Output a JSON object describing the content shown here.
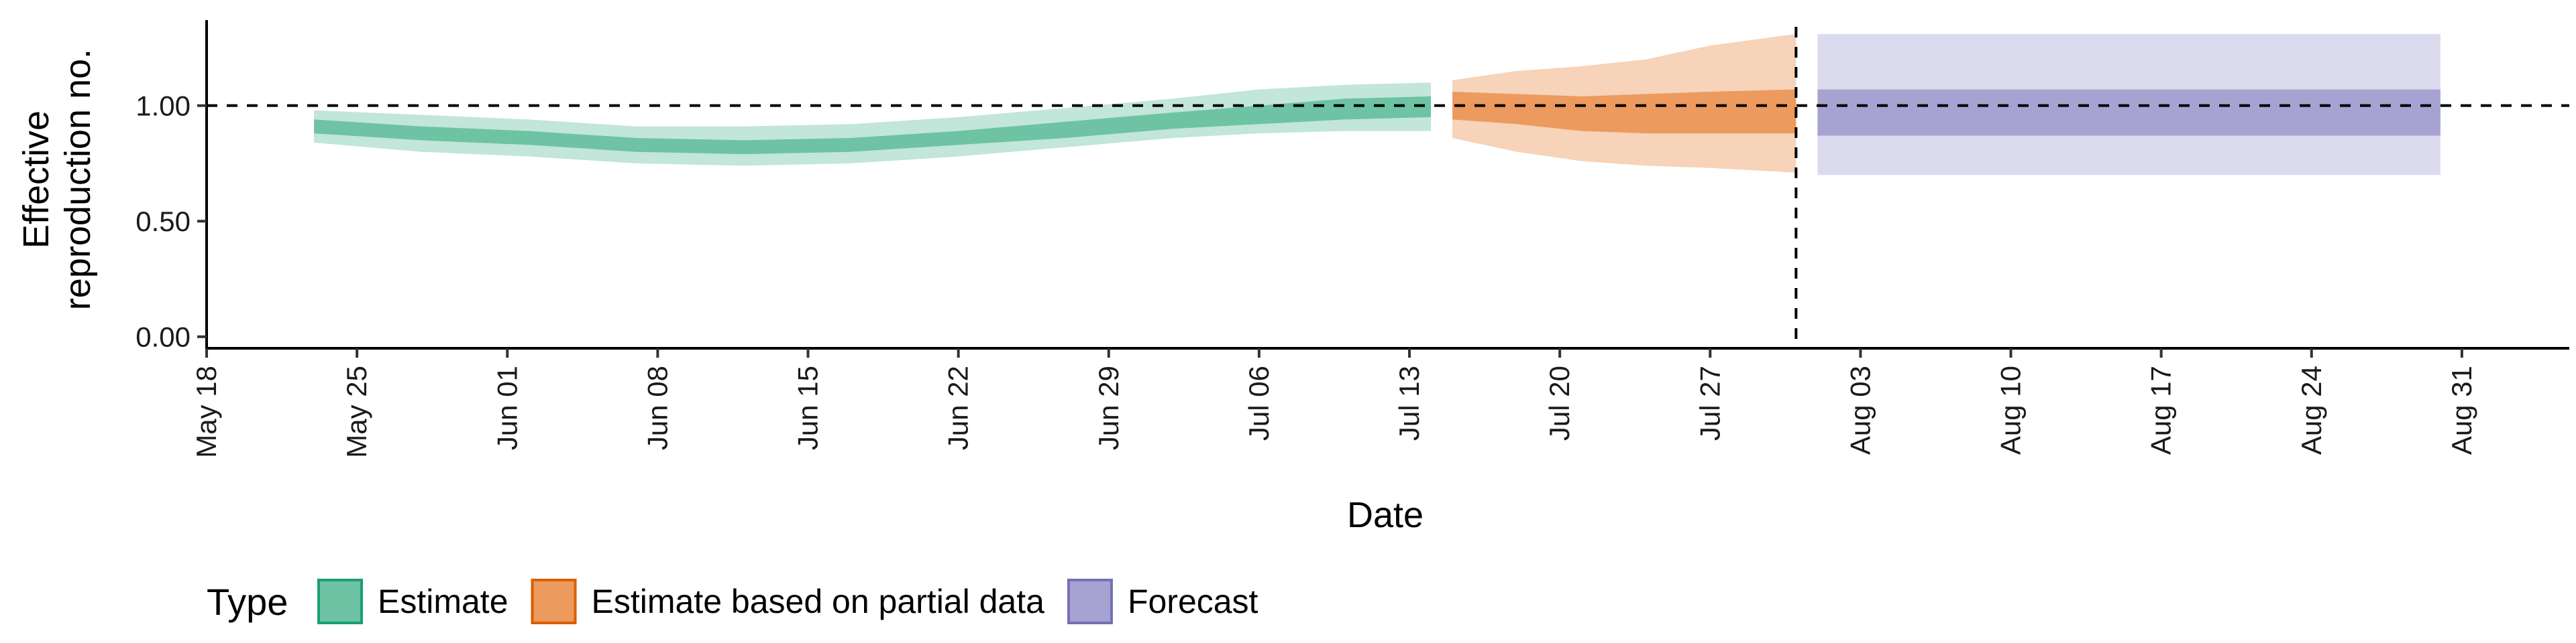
{
  "chart_data": {
    "type": "area",
    "title": "",
    "xlabel": "Date",
    "ylabel_lines": [
      "Effective",
      "reproduction no."
    ],
    "x_ticks": [
      "May 18",
      "May 25",
      "Jun 01",
      "Jun 08",
      "Jun 15",
      "Jun 22",
      "Jun 29",
      "Jul 06",
      "Jul 13",
      "Jul 20",
      "Jul 27",
      "Aug 03",
      "Aug 10",
      "Aug 17",
      "Aug 24",
      "Aug 31"
    ],
    "y_ticks": [
      "0.00",
      "0.50",
      "1.00"
    ],
    "y_tick_values": [
      0,
      0.5,
      1.0
    ],
    "xlim": [
      "2020-05-18",
      "2020-09-05"
    ],
    "ylim": [
      -0.05,
      1.37
    ],
    "reference_lines": {
      "horizontal_y": 1.0,
      "vertical_date": "2020-07-31"
    },
    "legend": {
      "title": "Type",
      "position": "bottom-left",
      "items": [
        {
          "label": "Estimate",
          "fill": "#6dc3a4",
          "stroke": "#1b9e77"
        },
        {
          "label": "Estimate based on partial data",
          "fill": "#ec9a5e",
          "stroke": "#d95f02"
        },
        {
          "label": "Forecast",
          "fill": "#a6a3d3",
          "stroke": "#7570b3"
        }
      ]
    },
    "series": [
      {
        "type_label": "Estimate",
        "outer_color": "#c2e6d9",
        "inner_color": "#6dc3a4",
        "dates": [
          "2020-05-23",
          "2020-05-28",
          "2020-06-02",
          "2020-06-07",
          "2020-06-12",
          "2020-06-17",
          "2020-06-22",
          "2020-06-27",
          "2020-07-02",
          "2020-07-06",
          "2020-07-10",
          "2020-07-14"
        ],
        "median": [
          0.91,
          0.88,
          0.86,
          0.83,
          0.82,
          0.83,
          0.86,
          0.89,
          0.93,
          0.96,
          0.99,
          1.0
        ],
        "lower_50": [
          0.88,
          0.85,
          0.83,
          0.8,
          0.79,
          0.8,
          0.83,
          0.86,
          0.9,
          0.92,
          0.94,
          0.95
        ],
        "upper_50": [
          0.94,
          0.91,
          0.89,
          0.86,
          0.85,
          0.86,
          0.89,
          0.93,
          0.97,
          1.0,
          1.03,
          1.04
        ],
        "lower_90": [
          0.84,
          0.8,
          0.78,
          0.75,
          0.74,
          0.75,
          0.78,
          0.82,
          0.86,
          0.88,
          0.89,
          0.89
        ],
        "upper_90": [
          0.98,
          0.96,
          0.94,
          0.91,
          0.91,
          0.92,
          0.95,
          0.99,
          1.03,
          1.07,
          1.09,
          1.1
        ]
      },
      {
        "type_label": "Estimate based on partial data",
        "outer_color": "#f6d3b9",
        "inner_color": "#ec9a5e",
        "dates": [
          "2020-07-15",
          "2020-07-18",
          "2020-07-21",
          "2020-07-24",
          "2020-07-27",
          "2020-07-31"
        ],
        "median": [
          1.0,
          0.99,
          0.97,
          0.97,
          0.98,
          0.99
        ],
        "lower_50": [
          0.94,
          0.92,
          0.89,
          0.88,
          0.88,
          0.88
        ],
        "upper_50": [
          1.06,
          1.05,
          1.04,
          1.05,
          1.06,
          1.07
        ],
        "lower_90": [
          0.86,
          0.8,
          0.76,
          0.74,
          0.73,
          0.71
        ],
        "upper_90": [
          1.11,
          1.15,
          1.17,
          1.2,
          1.26,
          1.31
        ]
      },
      {
        "type_label": "Forecast",
        "outer_color": "#dcdbee",
        "inner_color": "#a6a3d3",
        "dates": [
          "2020-08-01",
          "2020-08-30"
        ],
        "median": [
          0.97,
          0.97
        ],
        "lower_50": [
          0.87,
          0.87
        ],
        "upper_50": [
          1.07,
          1.07
        ],
        "lower_90": [
          0.7,
          0.7
        ],
        "upper_90": [
          1.31,
          1.31
        ]
      }
    ]
  }
}
